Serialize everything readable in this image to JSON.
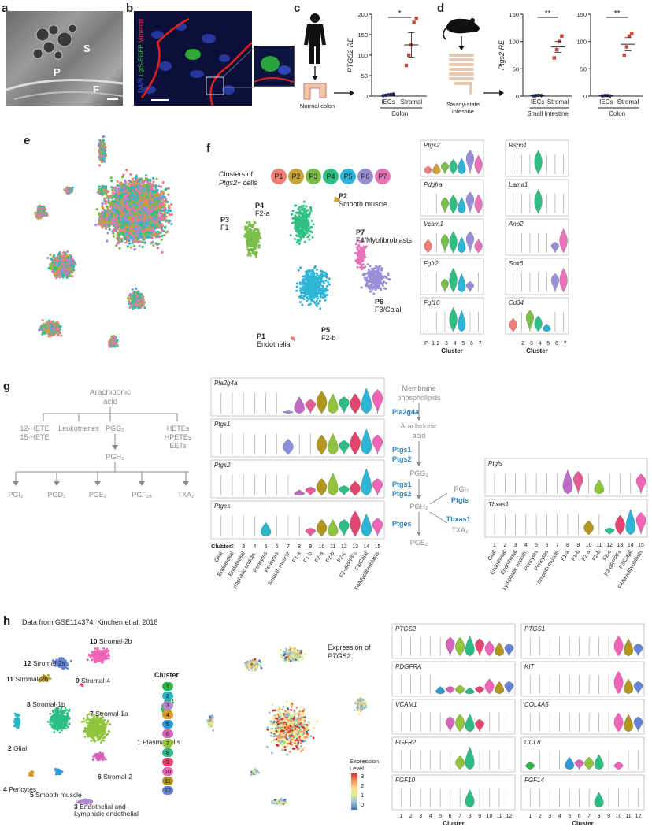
{
  "panels": {
    "a": "a",
    "b": "b",
    "c": "c",
    "d": "d",
    "e": "e",
    "f": "f",
    "g": "g",
    "h": "h"
  },
  "a": {
    "labels": [
      "S",
      "P",
      "F"
    ]
  },
  "b": {
    "stain_dapi": "DAPI",
    "stain_lgr5": "Lgr5-EGFP",
    "stain_vim": "Vimentin"
  },
  "c": {
    "source_label": "Normal colon",
    "chart_data": {
      "type": "scatter",
      "title": "",
      "ylabel": "PTGS2 RE",
      "ylim": [
        0,
        200
      ],
      "yticks": [
        0,
        50,
        100,
        150,
        200
      ],
      "categories": [
        "IECs",
        "Stromal"
      ],
      "group_label": "Colon",
      "significance": "*",
      "series": [
        {
          "values": [
            [
              1,
              2,
              3,
              4,
              5
            ],
            [
              75,
              100,
              125,
              180,
              190
            ]
          ]
        }
      ],
      "means": [
        2,
        125
      ],
      "sem": [
        1,
        30
      ]
    }
  },
  "d": {
    "source_label": "Steady-state intestine",
    "chart_data": [
      {
        "type": "scatter",
        "ylabel": "Ptgs2 RE",
        "ylim": [
          0,
          150
        ],
        "yticks": [
          0,
          50,
          100,
          150
        ],
        "categories": [
          "IECs",
          "Stromal"
        ],
        "group_label": "Small Intestine",
        "significance": "**",
        "means": [
          1,
          90
        ],
        "sem": [
          1,
          10
        ],
        "points": [
          [
            0.5,
            1,
            1.5,
            1
          ],
          [
            70,
            85,
            100,
            110
          ]
        ]
      },
      {
        "type": "scatter",
        "ylabel": "",
        "ylim": [
          0,
          150
        ],
        "yticks": [
          0,
          50,
          100,
          150
        ],
        "categories": [
          "IECs",
          "Stromal"
        ],
        "group_label": "Colon",
        "significance": "**",
        "means": [
          1,
          95
        ],
        "sem": [
          1,
          12
        ],
        "points": [
          [
            0.5,
            1,
            1,
            0.5
          ],
          [
            75,
            90,
            110,
            115
          ]
        ]
      }
    ]
  },
  "f": {
    "legend_title": "Clusters of",
    "legend_gene": "Ptgs2",
    "legend_suffix": "+ cells",
    "clusters": [
      {
        "id": "P1",
        "color": "#f07d76"
      },
      {
        "id": "P2",
        "color": "#c8a23a"
      },
      {
        "id": "P3",
        "color": "#7cbc4a"
      },
      {
        "id": "P4",
        "color": "#2fbf84"
      },
      {
        "id": "P5",
        "color": "#2cb5d6"
      },
      {
        "id": "P6",
        "color": "#9a8ed6"
      },
      {
        "id": "P7",
        "color": "#e673b8"
      }
    ],
    "cluster_labels": [
      {
        "id": "P1",
        "name": "Endothelial"
      },
      {
        "id": "P2",
        "name": "Smooth muscle"
      },
      {
        "id": "P3",
        "name": "F1"
      },
      {
        "id": "P4",
        "name": "F2-a"
      },
      {
        "id": "P5",
        "name": "F2-b"
      },
      {
        "id": "P6",
        "name": "F3/Cajal"
      },
      {
        "id": "P7",
        "name": "F4/Myofibroblasts"
      }
    ],
    "genes_left": [
      "Ptgs2",
      "Pdgfra",
      "Vcam1",
      "Fgfr2",
      "Fgf10"
    ],
    "genes_right": [
      "Rspo1",
      "Lama1",
      "Ano2",
      "Sox6",
      "Cd34"
    ],
    "xticks": [
      "P- 1",
      "2",
      "3",
      "4",
      "5",
      "6",
      "7"
    ],
    "xlabel": "Cluster"
  },
  "g": {
    "pathway": {
      "root": "Arachidonic acid",
      "l1": [
        "12-HETE 15-HETE",
        "Leukotrienes",
        "PGG2",
        "HETEs HPETEs EETs"
      ],
      "pgh2": "PGH2",
      "products": [
        "PGI2",
        "PGD2",
        "PGE2",
        "PGF2a",
        "TXA2"
      ]
    },
    "genes": [
      "Pla2g4a",
      "Ptgs1",
      "Ptgs2",
      "Ptges"
    ],
    "genes_right": [
      "Ptgis",
      "Tbxas1"
    ],
    "xlabel": "Cluster",
    "cluster_nums": [
      "1",
      "2",
      "3",
      "4",
      "5",
      "6",
      "7",
      "8",
      "9",
      "10",
      "11",
      "12",
      "13",
      "14",
      "15"
    ],
    "cluster_names": [
      "Glial",
      "Endothelial",
      "Endothelial",
      "Lymphatic endoth.",
      "Pericytes",
      "Pericytes",
      "Smooth muscle",
      "F1-a",
      "F1-b",
      "F2-a",
      "F2-b",
      "F2-c",
      "F2-dRPPFs",
      "F3/Cajal",
      "F4/Myofibroblasts"
    ],
    "flow": {
      "membrane": "Membrane phospholipids",
      "enz1": "Pla2g4a",
      "aa": "Arachidonic acid",
      "enz2a": "Ptgs1",
      "enz2b": "Ptgs2",
      "pgg2": "PGG2",
      "enz3a": "Ptgs1",
      "enz3b": "Ptgs2",
      "pgh2": "PGH2",
      "pgi2": "PGI2",
      "ptgis": "Ptgis",
      "tbxas1": "Tbxas1",
      "txa2": "TXA2",
      "ptges": "Ptges",
      "pge2": "PGE2"
    }
  },
  "h": {
    "source": "Data from GSE114374, Kinchen et al. 2018",
    "expression_title": "Expression of",
    "expression_gene": "PTGS2",
    "colorbar_title": "Expression Level",
    "colorbar_ticks": [
      "3",
      "2",
      "1",
      "0"
    ],
    "legend_title": "Cluster",
    "clusters": [
      {
        "n": "1",
        "name": "Plasma cells",
        "color": "#2eb34a"
      },
      {
        "n": "2",
        "name": "Glial",
        "color": "#27b7c6"
      },
      {
        "n": "3",
        "name": "Endothelial and Lymphatic endothelial",
        "color": "#b08ad0"
      },
      {
        "n": "4",
        "name": "Pericytes",
        "color": "#d99a2a"
      },
      {
        "n": "5",
        "name": "Smooth muscle",
        "color": "#2c9ad6"
      },
      {
        "n": "6",
        "name": "Stromal-2",
        "color": "#d862b8"
      },
      {
        "n": "7",
        "name": "Stromal-1a",
        "color": "#8fc43c"
      },
      {
        "n": "8",
        "name": "Stromal-1b",
        "color": "#2dbc86"
      },
      {
        "n": "9",
        "name": "Stromal-4",
        "color": "#e3456e"
      },
      {
        "n": "10",
        "name": "Stromal-2b",
        "color": "#ef64b6"
      },
      {
        "n": "11",
        "name": "Stromal-2b",
        "color": "#b2961f"
      },
      {
        "n": "12",
        "name": "Stromal-2s",
        "color": "#6584d4"
      }
    ],
    "genes_left": [
      "PTGS2",
      "PDGFRA",
      "VCAM1",
      "FGFR2",
      "FGF10"
    ],
    "genes_right": [
      "PTGS1",
      "KIT",
      "COL4A5",
      "CCL8",
      "FGF14"
    ],
    "xticks": [
      "1",
      "2",
      "3",
      "4",
      "5",
      "6",
      "7",
      "8",
      "9",
      "10",
      "11",
      "12"
    ],
    "xlabel": "Cluster"
  }
}
